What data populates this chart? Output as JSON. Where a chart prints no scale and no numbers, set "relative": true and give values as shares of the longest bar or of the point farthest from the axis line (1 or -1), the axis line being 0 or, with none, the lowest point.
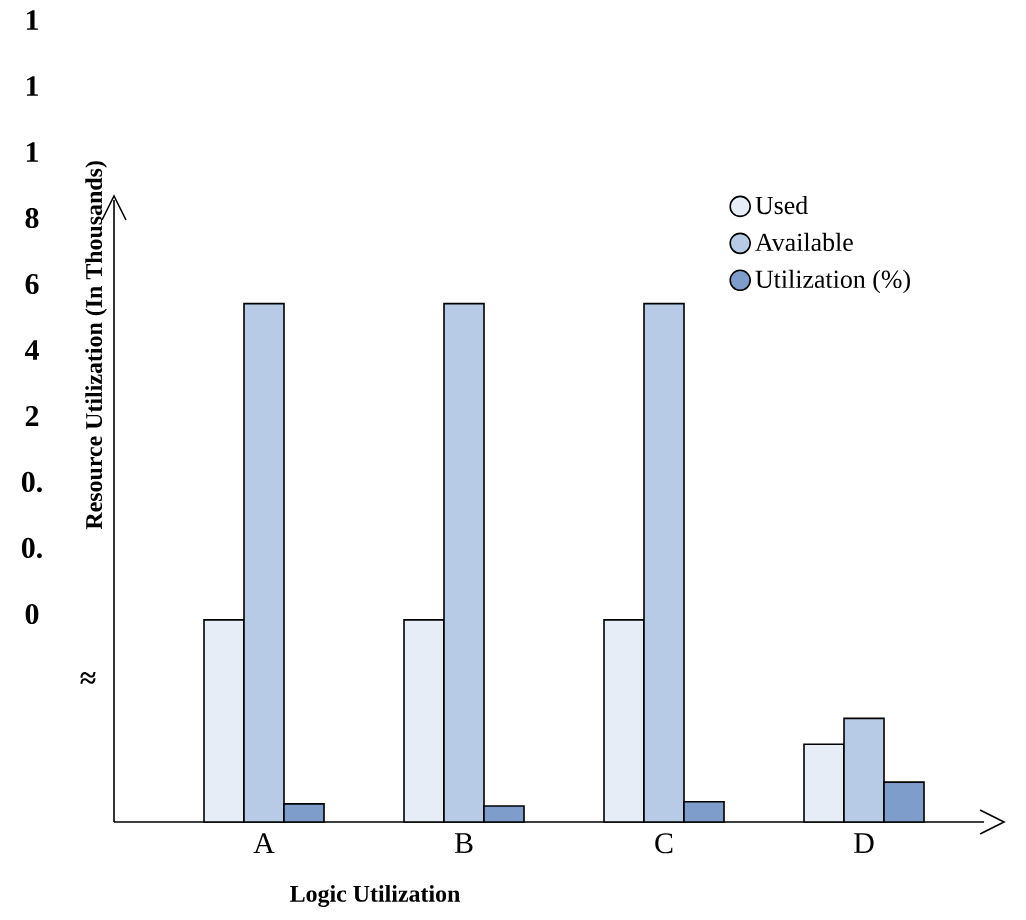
{
  "chart_data": {
    "type": "bar",
    "relative": true,
    "categories": [
      "A",
      "B",
      "C",
      "D"
    ],
    "series": [
      {
        "name": "Used",
        "color": "#e6edf7",
        "values": [
          0.39,
          0.39,
          0.39,
          0.15
        ]
      },
      {
        "name": "Available",
        "color": "#b8cbe6",
        "values": [
          1,
          1,
          1,
          0.2
        ]
      },
      {
        "name": "Utilization (%)",
        "color": "#7f9dcb",
        "values": [
          0.035,
          0.031,
          0.039,
          0.077
        ]
      }
    ],
    "xlabel": "Logic Utilization",
    "ylabel": "Resource Utilization (In Thousands)",
    "annotations": [
      "1",
      "1",
      "1",
      "8",
      "6",
      "4",
      "2",
      "0.",
      "0.",
      "0",
      "≈"
    ],
    "legend": "top right"
  }
}
